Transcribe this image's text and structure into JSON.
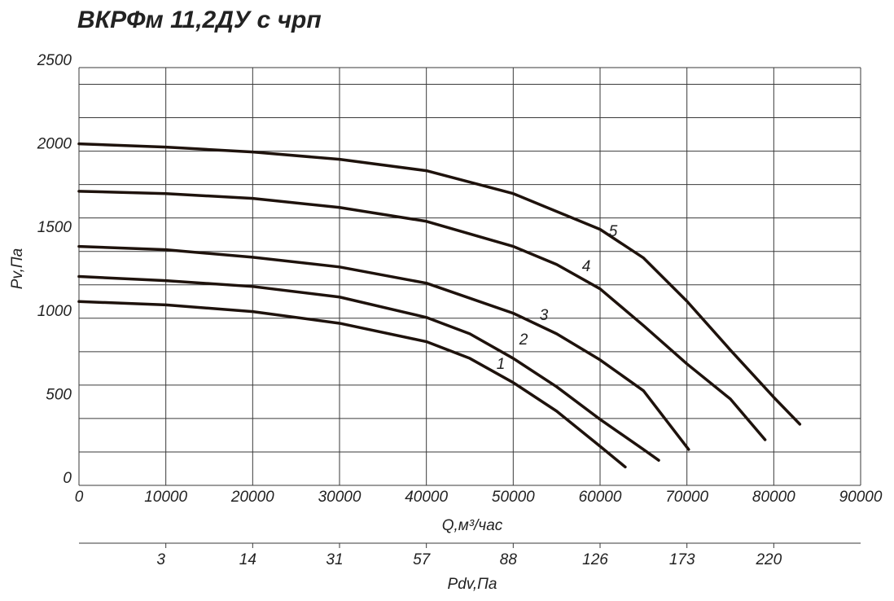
{
  "chart_data": {
    "type": "line",
    "title": "ВКРФм 11,2ДУ с чрп",
    "xlabel": "Q,м³/час",
    "ylabel": "Pv,Па",
    "x2label": "Pdv,Па",
    "xlim": [
      0,
      90000
    ],
    "ylim": [
      0,
      2500
    ],
    "xticks": [
      0,
      10000,
      20000,
      30000,
      40000,
      50000,
      60000,
      70000,
      80000,
      90000
    ],
    "yticks": [
      0,
      500,
      1000,
      1500,
      2000,
      2500
    ],
    "ygrid": [
      0,
      200,
      400,
      600,
      800,
      1000,
      1200,
      1400,
      1600,
      1800,
      2000,
      2200,
      2400,
      2500
    ],
    "x2ticks": [
      {
        "value": 10000,
        "label": "3"
      },
      {
        "value": 20000,
        "label": "14"
      },
      {
        "value": 30000,
        "label": "31"
      },
      {
        "value": 40000,
        "label": "57"
      },
      {
        "value": 50000,
        "label": "88"
      },
      {
        "value": 60000,
        "label": "126"
      },
      {
        "value": 70000,
        "label": "173"
      },
      {
        "value": 80000,
        "label": "220"
      }
    ],
    "grid": true,
    "color": "#1e120c",
    "series": [
      {
        "name": "1",
        "x": [
          0,
          10000,
          20000,
          30000,
          40000,
          45000,
          50000,
          55000,
          60000,
          62900
        ],
        "values": [
          1100,
          1080,
          1040,
          970,
          860,
          760,
          615,
          444,
          234,
          110
        ]
      },
      {
        "name": "2",
        "x": [
          0,
          10000,
          20000,
          30000,
          40000,
          45000,
          50000,
          55000,
          60000,
          65000,
          66750
        ],
        "values": [
          1250,
          1225,
          1190,
          1127,
          1005,
          907,
          760,
          590,
          395,
          215,
          150
        ]
      },
      {
        "name": "3",
        "x": [
          0,
          10000,
          20000,
          30000,
          40000,
          50000,
          55000,
          60000,
          65000,
          70200
        ],
        "values": [
          1430,
          1410,
          1365,
          1307,
          1210,
          1030,
          907,
          751,
          566,
          215
        ]
      },
      {
        "name": "4",
        "x": [
          0,
          10000,
          20000,
          30000,
          40000,
          50000,
          55000,
          60000,
          65000,
          70000,
          75000,
          79000
        ],
        "values": [
          1760,
          1746,
          1717,
          1663,
          1580,
          1430,
          1322,
          1176,
          956,
          727,
          517,
          273
        ]
      },
      {
        "name": "5",
        "x": [
          0,
          10000,
          20000,
          30000,
          40000,
          50000,
          60000,
          65000,
          70000,
          75000,
          80000,
          83000
        ],
        "values": [
          2044,
          2024,
          1995,
          1951,
          1883,
          1746,
          1532,
          1361,
          1102,
          810,
          527,
          366
        ]
      }
    ]
  }
}
